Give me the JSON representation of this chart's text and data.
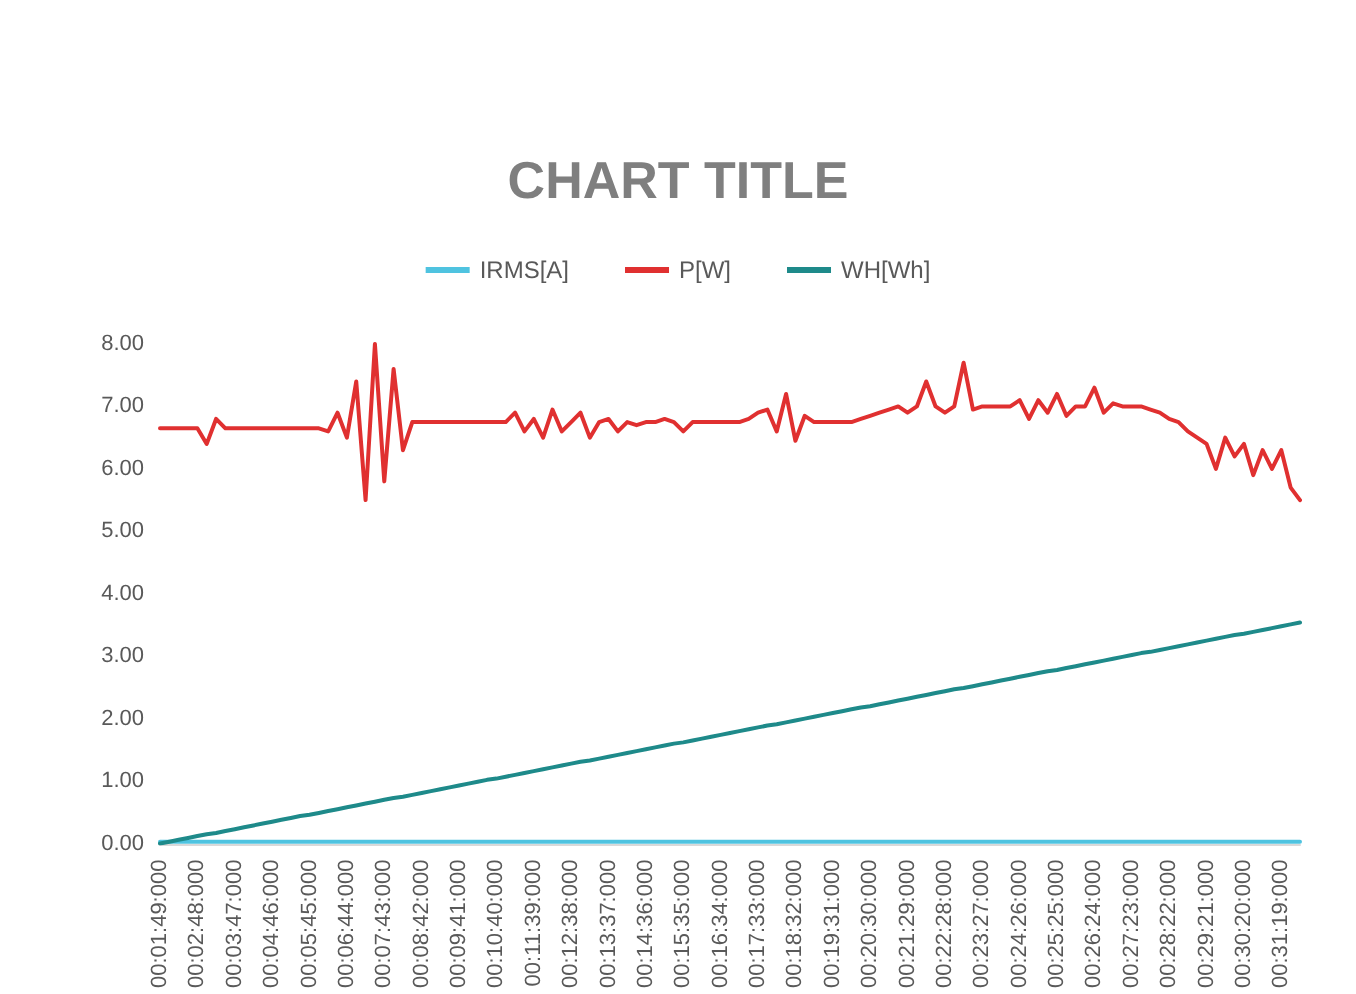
{
  "chart_data": {
    "type": "line",
    "title": "CHART TITLE",
    "categories": [
      "00:01:49:000",
      null,
      null,
      null,
      "00:02:48:000",
      null,
      null,
      null,
      "00:03:47:000",
      null,
      null,
      null,
      "00:04:46:000",
      null,
      null,
      null,
      "00:05:45:000",
      null,
      null,
      null,
      "00:06:44:000",
      null,
      null,
      null,
      "00:07:43:000",
      null,
      null,
      null,
      "00:08:42:000",
      null,
      null,
      null,
      "00:09:41:000",
      null,
      null,
      null,
      "00:10:40:000",
      null,
      null,
      null,
      "00:11:39:000",
      null,
      null,
      null,
      "00:12:38:000",
      null,
      null,
      null,
      "00:13:37:000",
      null,
      null,
      null,
      "00:14:36:000",
      null,
      null,
      null,
      "00:15:35:000",
      null,
      null,
      null,
      "00:16:34:000",
      null,
      null,
      null,
      "00:17:33:000",
      null,
      null,
      null,
      "00:18:32:000",
      null,
      null,
      null,
      "00:19:31:000",
      null,
      null,
      null,
      "00:20:30:000",
      null,
      null,
      null,
      "00:21:29:000",
      null,
      null,
      null,
      "00:22:28:000",
      null,
      null,
      null,
      "00:23:27:000",
      null,
      null,
      null,
      "00:24:26:000",
      null,
      null,
      null,
      "00:25:25:000",
      null,
      null,
      null,
      "00:26:24:000",
      null,
      null,
      null,
      "00:27:23:000",
      null,
      null,
      null,
      "00:28:22:000",
      null,
      null,
      null,
      "00:29:21:000",
      null,
      null,
      null,
      "00:30:20:000",
      null,
      null,
      null,
      "00:31:19:000",
      null,
      null
    ],
    "series": [
      {
        "name": "IRMS[A]",
        "color": "#4fc3e0",
        "values": [
          0.03,
          0.03,
          0.03,
          0.03,
          0.03,
          0.03,
          0.03,
          0.03,
          0.03,
          0.03,
          0.03,
          0.03,
          0.03,
          0.03,
          0.03,
          0.03,
          0.03,
          0.03,
          0.03,
          0.03,
          0.03,
          0.03,
          0.03,
          0.03,
          0.03,
          0.03,
          0.03,
          0.03,
          0.03,
          0.03,
          0.03,
          0.03,
          0.03,
          0.03,
          0.03,
          0.03,
          0.03,
          0.03,
          0.03,
          0.03,
          0.03,
          0.03,
          0.03,
          0.03,
          0.03,
          0.03,
          0.03,
          0.03,
          0.03,
          0.03,
          0.03,
          0.03,
          0.03,
          0.03,
          0.03,
          0.03,
          0.03,
          0.03,
          0.03,
          0.03,
          0.03,
          0.03,
          0.03,
          0.03,
          0.03,
          0.03,
          0.03,
          0.03,
          0.03,
          0.03,
          0.03,
          0.03,
          0.03,
          0.03,
          0.03,
          0.03,
          0.03,
          0.03,
          0.03,
          0.03,
          0.03,
          0.03,
          0.03,
          0.03,
          0.03,
          0.03,
          0.03,
          0.03,
          0.03,
          0.03,
          0.03,
          0.03,
          0.03,
          0.03,
          0.03,
          0.03,
          0.03,
          0.03,
          0.03,
          0.03,
          0.03,
          0.03,
          0.03,
          0.03,
          0.03,
          0.03,
          0.03,
          0.03,
          0.03,
          0.03,
          0.03,
          0.03,
          0.03,
          0.03,
          0.03,
          0.03,
          0.03,
          0.03,
          0.03,
          0.03,
          0.03,
          0.03,
          0.03
        ]
      },
      {
        "name": "P[W]",
        "color": "#e03030",
        "values": [
          6.65,
          6.65,
          6.65,
          6.65,
          6.65,
          6.4,
          6.8,
          6.65,
          6.65,
          6.65,
          6.65,
          6.65,
          6.65,
          6.65,
          6.65,
          6.65,
          6.65,
          6.65,
          6.6,
          6.9,
          6.5,
          7.4,
          5.5,
          8.0,
          5.8,
          7.6,
          6.3,
          6.75,
          6.75,
          6.75,
          6.75,
          6.75,
          6.75,
          6.75,
          6.75,
          6.75,
          6.75,
          6.75,
          6.9,
          6.6,
          6.8,
          6.5,
          6.95,
          6.6,
          6.75,
          6.9,
          6.5,
          6.75,
          6.8,
          6.6,
          6.75,
          6.7,
          6.75,
          6.75,
          6.8,
          6.75,
          6.6,
          6.75,
          6.75,
          6.75,
          6.75,
          6.75,
          6.75,
          6.8,
          6.9,
          6.95,
          6.6,
          7.2,
          6.45,
          6.85,
          6.75,
          6.75,
          6.75,
          6.75,
          6.75,
          6.8,
          6.85,
          6.9,
          6.95,
          7.0,
          6.9,
          7.0,
          7.4,
          7.0,
          6.9,
          7.0,
          7.7,
          6.95,
          7.0,
          7.0,
          7.0,
          7.0,
          7.1,
          6.8,
          7.1,
          6.9,
          7.2,
          6.85,
          7.0,
          7.0,
          7.3,
          6.9,
          7.05,
          7.0,
          7.0,
          7.0,
          6.95,
          6.9,
          6.8,
          6.75,
          6.6,
          6.5,
          6.4,
          6.0,
          6.5,
          6.2,
          6.4,
          5.9,
          6.3,
          6.0,
          6.3,
          5.7,
          5.5
        ]
      },
      {
        "name": "WH[Wh]",
        "color": "#1e8a8a",
        "values": [
          0.0,
          0.03,
          0.06,
          0.09,
          0.12,
          0.15,
          0.17,
          0.2,
          0.23,
          0.26,
          0.29,
          0.32,
          0.35,
          0.38,
          0.41,
          0.44,
          0.46,
          0.49,
          0.52,
          0.55,
          0.58,
          0.61,
          0.64,
          0.67,
          0.7,
          0.73,
          0.75,
          0.78,
          0.81,
          0.84,
          0.87,
          0.9,
          0.93,
          0.96,
          0.99,
          1.02,
          1.04,
          1.07,
          1.1,
          1.13,
          1.16,
          1.19,
          1.22,
          1.25,
          1.28,
          1.31,
          1.33,
          1.36,
          1.39,
          1.42,
          1.45,
          1.48,
          1.51,
          1.54,
          1.57,
          1.6,
          1.62,
          1.65,
          1.68,
          1.71,
          1.74,
          1.77,
          1.8,
          1.83,
          1.86,
          1.89,
          1.91,
          1.94,
          1.97,
          2.0,
          2.03,
          2.06,
          2.09,
          2.12,
          2.15,
          2.18,
          2.2,
          2.23,
          2.26,
          2.29,
          2.32,
          2.35,
          2.38,
          2.41,
          2.44,
          2.47,
          2.49,
          2.52,
          2.55,
          2.58,
          2.61,
          2.64,
          2.67,
          2.7,
          2.73,
          2.76,
          2.78,
          2.81,
          2.84,
          2.87,
          2.9,
          2.93,
          2.96,
          2.99,
          3.02,
          3.05,
          3.07,
          3.1,
          3.13,
          3.16,
          3.19,
          3.22,
          3.25,
          3.28,
          3.31,
          3.34,
          3.36,
          3.39,
          3.42,
          3.45,
          3.48,
          3.51,
          3.54
        ]
      }
    ],
    "ylim": [
      0,
      8
    ],
    "yticks": [
      {
        "value": 0,
        "label": "0.00"
      },
      {
        "value": 1,
        "label": "1.00"
      },
      {
        "value": 2,
        "label": "2.00"
      },
      {
        "value": 3,
        "label": "3.00"
      },
      {
        "value": 4,
        "label": "4.00"
      },
      {
        "value": 5,
        "label": "5.00"
      },
      {
        "value": 6,
        "label": "6.00"
      },
      {
        "value": 7,
        "label": "7.00"
      },
      {
        "value": 8,
        "label": "8.00"
      }
    ],
    "grid": false,
    "legend": "top",
    "marker": "none",
    "line_style": "solid"
  }
}
